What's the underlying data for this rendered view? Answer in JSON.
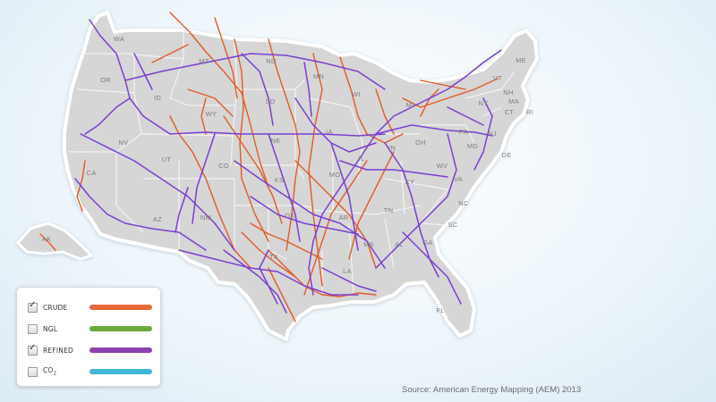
{
  "map": {
    "state_labels": [
      "WA",
      "OR",
      "ID",
      "MT",
      "ND",
      "MN",
      "WI",
      "MI",
      "SD",
      "WY",
      "NV",
      "CA",
      "UT",
      "CO",
      "NE",
      "IA",
      "IL",
      "IN",
      "OH",
      "PA",
      "NY",
      "VT",
      "NH",
      "ME",
      "MA",
      "RI",
      "CT",
      "NJ",
      "DE",
      "MD",
      "WV",
      "VA",
      "KY",
      "TN",
      "NC",
      "SC",
      "GA",
      "AL",
      "MS",
      "AR",
      "LA",
      "MO",
      "KS",
      "OK",
      "TX",
      "NM",
      "AZ",
      "FL",
      "AK",
      "HI"
    ],
    "pipeline_colors": {
      "crude": "#e55a24",
      "refined": "#7a3fd1"
    }
  },
  "legend": {
    "items": [
      {
        "label": "CRUDE",
        "checked": true,
        "color": "#e56b3a"
      },
      {
        "label": "NGL",
        "checked": false,
        "color": "#6aaa3c"
      },
      {
        "label": "REFINED",
        "checked": true,
        "color": "#8b3fb3"
      },
      {
        "label": "CO",
        "subscript": "2",
        "checked": false,
        "color": "#3fb7d8"
      }
    ]
  },
  "source": "Source: American Energy Mapping (AEM) 2013"
}
